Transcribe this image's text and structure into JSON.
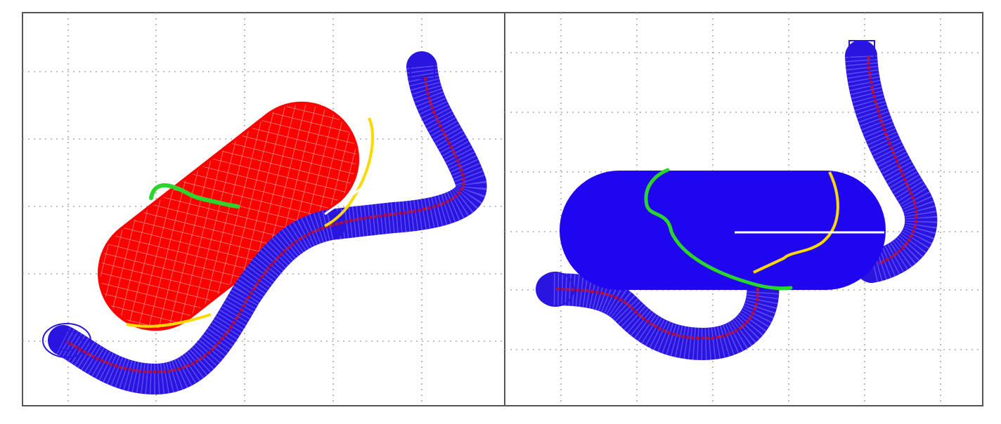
{
  "figure": {
    "panel_count": 2,
    "grid": "dotted",
    "panels": [
      {
        "id": "left",
        "view": "oblique",
        "capsule_color": "#ff0000",
        "capsule_style": "wireframe mesh",
        "tube_color": "#2a14e0",
        "centerline_color": "#b01040",
        "curves": [
          {
            "name": "green-curve",
            "color": "#2bd52b"
          },
          {
            "name": "yellow-curve",
            "color": "#ffd800"
          },
          {
            "name": "white-line",
            "color": "#ffffff"
          }
        ]
      },
      {
        "id": "right",
        "view": "side",
        "capsule_color": "#1f06ee",
        "capsule_style": "solid",
        "tube_color": "#2a14e0",
        "centerline_color": "#b01040",
        "curves": [
          {
            "name": "green-curve",
            "color": "#2bd52b"
          },
          {
            "name": "yellow-curve",
            "color": "#ffd800"
          },
          {
            "name": "white-line",
            "color": "#ffffff"
          }
        ]
      }
    ],
    "colors": {
      "border": "#555555",
      "grid": "#a8a8a8",
      "background": "#ffffff"
    }
  }
}
